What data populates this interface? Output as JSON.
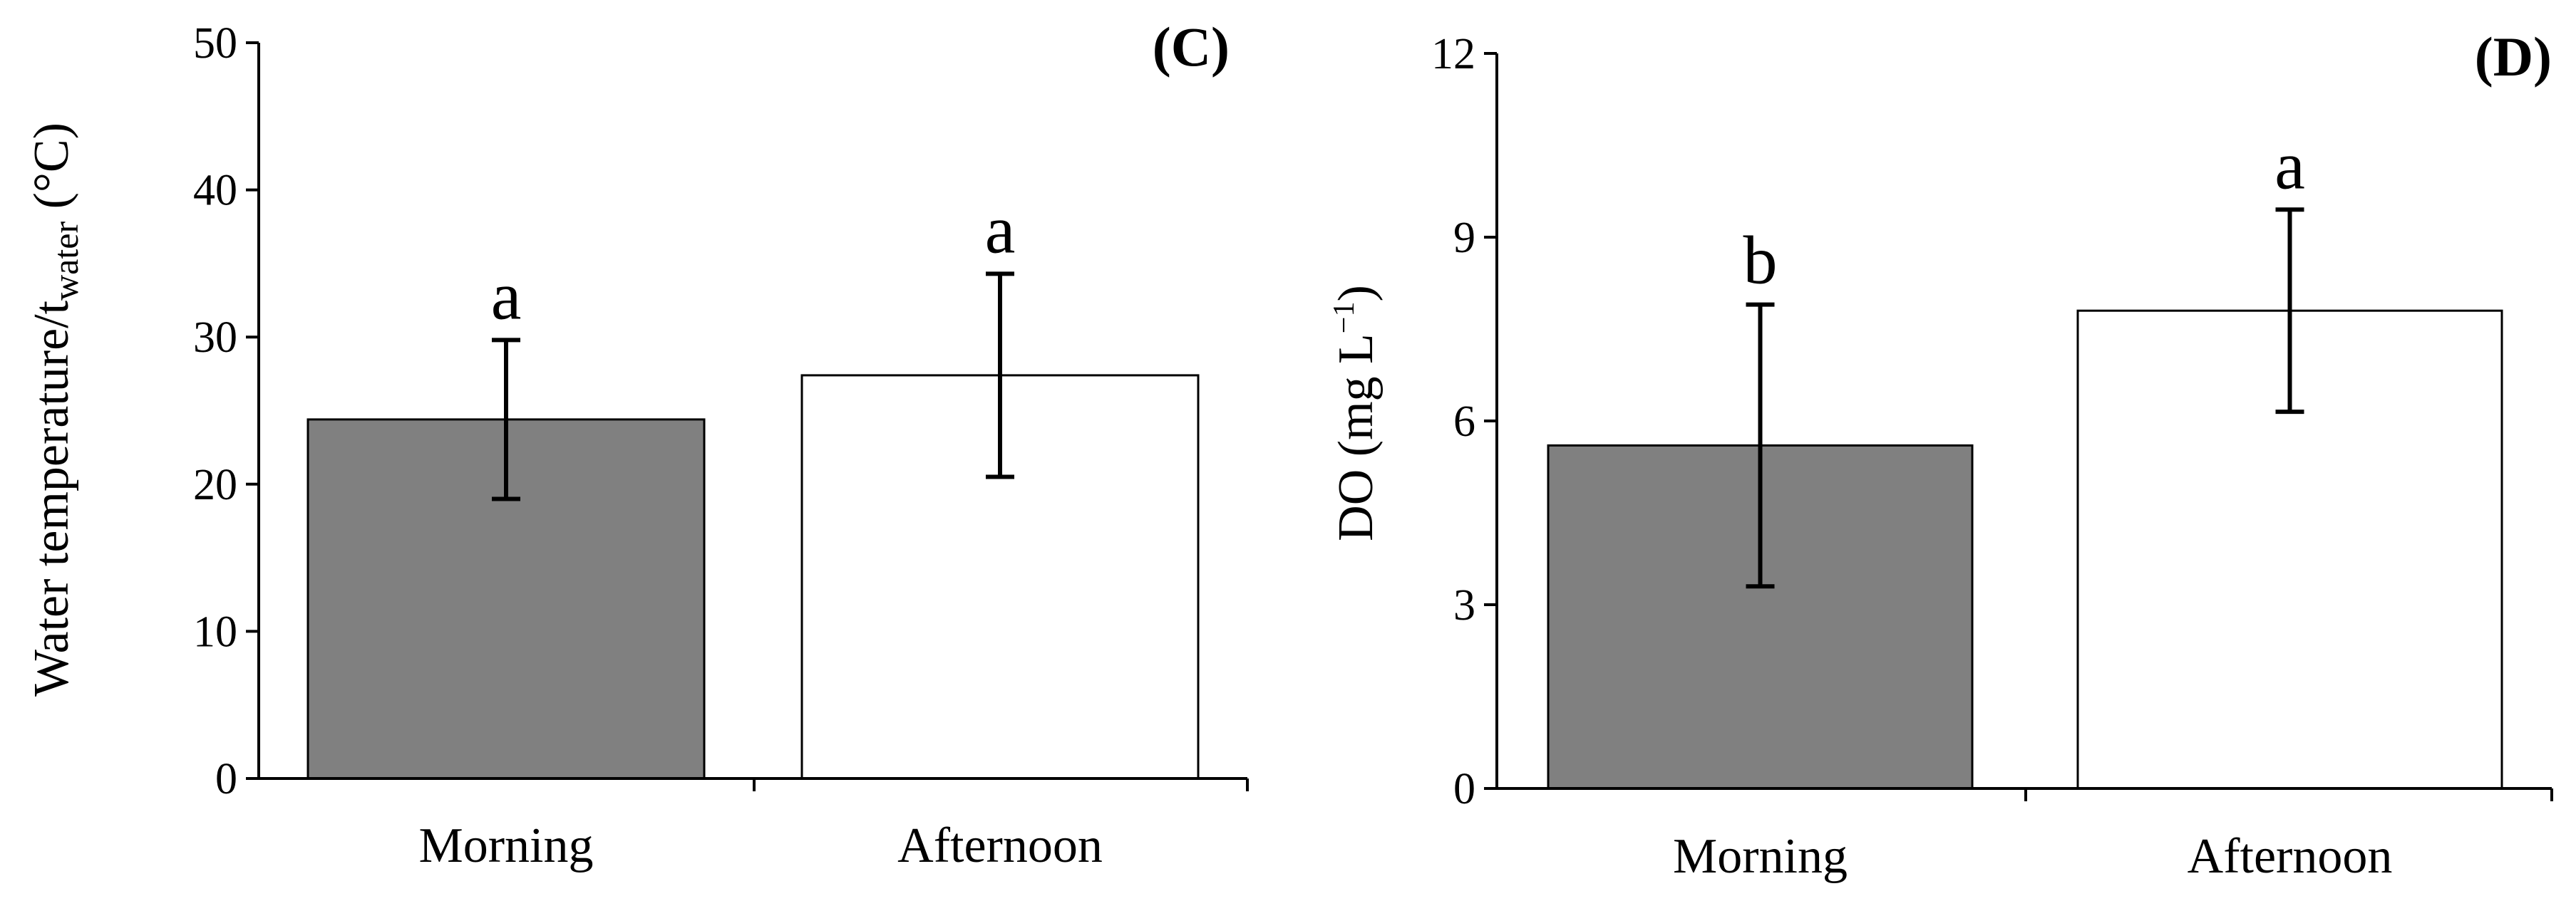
{
  "chart_data": [
    {
      "type": "bar",
      "panel_label": "(C)",
      "categories": [
        "Morning",
        "Afternoon"
      ],
      "values": [
        24.4,
        27.4
      ],
      "errors": [
        5.4,
        6.9
      ],
      "significance": [
        "a",
        "a"
      ],
      "bar_colors": [
        "#808080",
        "#ffffff"
      ],
      "ylim": [
        0,
        50
      ],
      "yticks": [
        "0",
        "10",
        "20",
        "30",
        "40",
        "50"
      ],
      "ylabel": {
        "main": "Water temperature/t",
        "sub": "water",
        "unit": " (°C)"
      },
      "grid": false,
      "legend": "none"
    },
    {
      "type": "bar",
      "panel_label": "(D)",
      "categories": [
        "Morning",
        "Afternoon"
      ],
      "values": [
        5.6,
        7.8
      ],
      "errors": [
        2.3,
        1.65
      ],
      "significance": [
        "b",
        "a"
      ],
      "bar_colors": [
        "#808080",
        "#ffffff"
      ],
      "ylim": [
        0,
        12
      ],
      "yticks": [
        "0",
        "3",
        "6",
        "9",
        "12"
      ],
      "ylabel": {
        "main": "DO (mg L",
        "sup": "−1",
        "unit": ")"
      },
      "grid": false,
      "legend": "none"
    }
  ]
}
